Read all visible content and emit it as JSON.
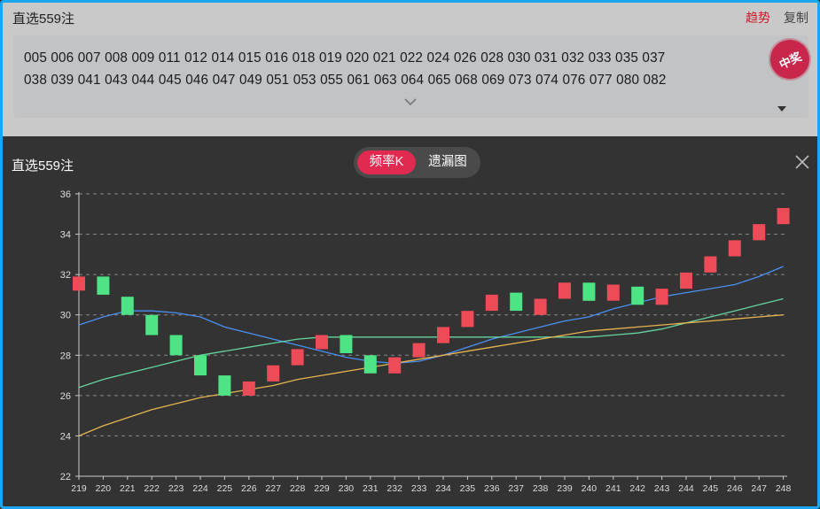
{
  "header": {
    "title": "直选559注",
    "trend_link": "趋势",
    "copy_link": "复制"
  },
  "numbers": {
    "line1": "005 006 007 008 009 011 012 014 015 016 018 019 020 021 022 024 026 028 030 031 032 033 035 037",
    "line2": "038 039 041 043 044 045 046 047 049 051 053 055 061 063 064 065 068 069 073 074 076 077 080 082"
  },
  "stamp": {
    "text": "中奖",
    "color": "#c8264a"
  },
  "panel": {
    "title": "直选559注",
    "tabs": [
      {
        "label": "频率K",
        "active": true
      },
      {
        "label": "遗漏图",
        "active": false
      }
    ]
  },
  "colors": {
    "up": "#ee4b58",
    "down": "#4ee486",
    "ma_blue": "#4a8ff2",
    "ma_green": "#65d3a0",
    "ma_yellow": "#e6b450",
    "accent": "#e12a4f",
    "border": "#1aa6f0"
  },
  "chart_data": {
    "type": "candlestick",
    "categories": [
      "219",
      "220",
      "221",
      "222",
      "223",
      "224",
      "225",
      "226",
      "227",
      "228",
      "229",
      "230",
      "231",
      "232",
      "233",
      "234",
      "235",
      "236",
      "237",
      "238",
      "239",
      "240",
      "241",
      "242",
      "243",
      "244",
      "245",
      "246",
      "247",
      "248"
    ],
    "ylim": [
      22,
      36
    ],
    "yticks": [
      22,
      24,
      26,
      28,
      30,
      32,
      34,
      36
    ],
    "grid": true,
    "candles": [
      {
        "open": 31.2,
        "close": 31.9,
        "dir": "up"
      },
      {
        "open": 31.9,
        "close": 31.0,
        "dir": "down"
      },
      {
        "open": 30.9,
        "close": 30.0,
        "dir": "down"
      },
      {
        "open": 30.0,
        "close": 29.0,
        "dir": "down"
      },
      {
        "open": 29.0,
        "close": 28.0,
        "dir": "down"
      },
      {
        "open": 28.0,
        "close": 27.0,
        "dir": "down"
      },
      {
        "open": 27.0,
        "close": 26.0,
        "dir": "down"
      },
      {
        "open": 26.0,
        "close": 26.7,
        "dir": "up"
      },
      {
        "open": 26.7,
        "close": 27.5,
        "dir": "up"
      },
      {
        "open": 27.5,
        "close": 28.3,
        "dir": "up"
      },
      {
        "open": 28.3,
        "close": 29.0,
        "dir": "up"
      },
      {
        "open": 29.0,
        "close": 28.1,
        "dir": "down"
      },
      {
        "open": 28.0,
        "close": 27.1,
        "dir": "down"
      },
      {
        "open": 27.1,
        "close": 27.9,
        "dir": "up"
      },
      {
        "open": 27.9,
        "close": 28.6,
        "dir": "up"
      },
      {
        "open": 28.6,
        "close": 29.4,
        "dir": "up"
      },
      {
        "open": 29.4,
        "close": 30.2,
        "dir": "up"
      },
      {
        "open": 30.2,
        "close": 31.0,
        "dir": "up"
      },
      {
        "open": 31.1,
        "close": 30.2,
        "dir": "down"
      },
      {
        "open": 30.0,
        "close": 30.8,
        "dir": "up"
      },
      {
        "open": 30.8,
        "close": 31.6,
        "dir": "up"
      },
      {
        "open": 31.6,
        "close": 30.7,
        "dir": "down"
      },
      {
        "open": 30.7,
        "close": 31.5,
        "dir": "up"
      },
      {
        "open": 31.4,
        "close": 30.5,
        "dir": "down"
      },
      {
        "open": 30.5,
        "close": 31.3,
        "dir": "up"
      },
      {
        "open": 31.3,
        "close": 32.1,
        "dir": "up"
      },
      {
        "open": 32.1,
        "close": 32.9,
        "dir": "up"
      },
      {
        "open": 32.9,
        "close": 33.7,
        "dir": "up"
      },
      {
        "open": 33.7,
        "close": 34.5,
        "dir": "up"
      },
      {
        "open": 34.5,
        "close": 35.3,
        "dir": "up"
      }
    ],
    "lines": [
      {
        "color": "#4a8ff2",
        "values": [
          29.5,
          29.9,
          30.2,
          30.2,
          30.1,
          29.9,
          29.4,
          29.1,
          28.8,
          28.5,
          28.2,
          27.9,
          27.7,
          27.6,
          27.7,
          28.0,
          28.4,
          28.8,
          29.1,
          29.4,
          29.7,
          29.9,
          30.3,
          30.6,
          30.9,
          31.1,
          31.3,
          31.5,
          31.9,
          32.4
        ]
      },
      {
        "color": "#65d3a0",
        "values": [
          26.4,
          26.8,
          27.1,
          27.4,
          27.7,
          28.0,
          28.2,
          28.4,
          28.6,
          28.8,
          28.9,
          28.9,
          28.9,
          28.9,
          28.9,
          28.9,
          28.9,
          28.9,
          28.9,
          28.9,
          28.9,
          28.9,
          29.0,
          29.1,
          29.3,
          29.6,
          29.9,
          30.2,
          30.5,
          30.8
        ]
      },
      {
        "color": "#e6b450",
        "values": [
          24.0,
          24.5,
          24.9,
          25.3,
          25.6,
          25.9,
          26.1,
          26.3,
          26.5,
          26.8,
          27.0,
          27.2,
          27.4,
          27.6,
          27.8,
          28.0,
          28.2,
          28.4,
          28.6,
          28.8,
          29.0,
          29.2,
          29.3,
          29.4,
          29.5,
          29.6,
          29.7,
          29.8,
          29.9,
          30.0
        ]
      }
    ]
  }
}
